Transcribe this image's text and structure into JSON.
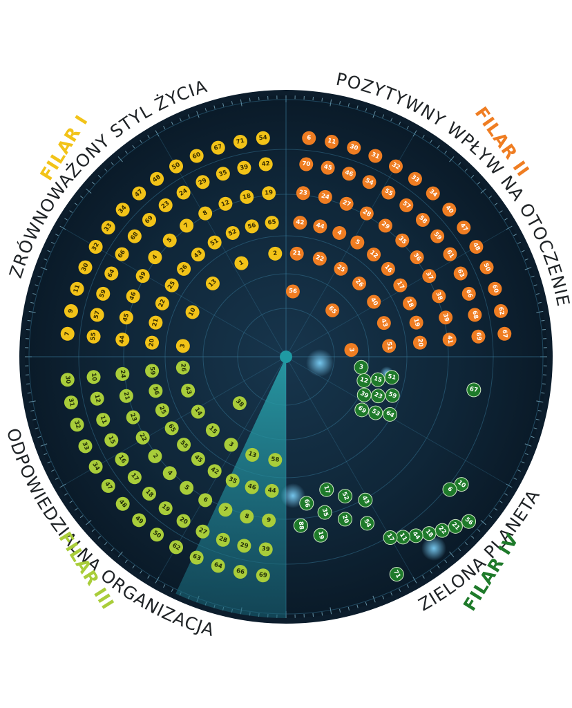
{
  "pillars": [
    {
      "id": "p1",
      "label": "FILAR I",
      "title": "ZRÓWNOWAŻONY STYL ŻYCIA",
      "color": "#f2c318",
      "text_color": "#3a2e00",
      "numbers": [
        7,
        9,
        11,
        30,
        32,
        33,
        34,
        47,
        48,
        50,
        60,
        67,
        71,
        54,
        55,
        57,
        59,
        64,
        66,
        68,
        69,
        23,
        24,
        29,
        35,
        39,
        42,
        44,
        45,
        46,
        49,
        4,
        5,
        7,
        8,
        12,
        18,
        19,
        20,
        21,
        22,
        25,
        26,
        43,
        51,
        52,
        56,
        65,
        3,
        10,
        13,
        1,
        2
      ]
    },
    {
      "id": "p2",
      "label": "FILAR II",
      "title": "POZYTYWNY WPŁYW NA OTOCZENIE",
      "color": "#ef7d22",
      "text_color": "#ffffff",
      "numbers": [
        6,
        11,
        30,
        31,
        32,
        33,
        34,
        40,
        47,
        48,
        50,
        60,
        62,
        67,
        70,
        45,
        46,
        54,
        55,
        57,
        58,
        59,
        61,
        63,
        66,
        68,
        69,
        23,
        24,
        27,
        28,
        29,
        35,
        36,
        37,
        38,
        39,
        41,
        42,
        44,
        4,
        5,
        12,
        16,
        17,
        18,
        19,
        20,
        21,
        22,
        25,
        26,
        40,
        43,
        51,
        56,
        65,
        3,
        10,
        13,
        14,
        15,
        1,
        2
      ]
    },
    {
      "id": "p3",
      "label": "FILAR III",
      "title": "ODPOWIEDZIALNA ORGANIZACJA",
      "color": "#a9cd3a",
      "text_color": "#23300a",
      "numbers": [
        69,
        66,
        64,
        63,
        62,
        50,
        49,
        48,
        47,
        34,
        33,
        32,
        31,
        30,
        39,
        29,
        28,
        27,
        20,
        19,
        18,
        17,
        16,
        15,
        11,
        12,
        10,
        9,
        8,
        7,
        6,
        5,
        4,
        2,
        22,
        23,
        21,
        24,
        44,
        46,
        35,
        42,
        45,
        55,
        65,
        25,
        56,
        59,
        58,
        13,
        3,
        15,
        14,
        43,
        26,
        38
      ]
    },
    {
      "id": "p4",
      "label": "FILAR IV",
      "title": "ZIELONA PLANETA",
      "color": "#1e7a2a",
      "text_color": "#ffffff",
      "numbers": [
        3,
        43,
        10,
        51,
        54,
        6,
        15,
        52,
        56,
        12,
        20,
        21,
        59,
        17,
        22,
        23,
        35,
        18,
        39,
        19,
        44,
        64,
        66,
        11,
        53,
        88,
        17,
        69,
        67,
        71
      ]
    }
  ]
}
